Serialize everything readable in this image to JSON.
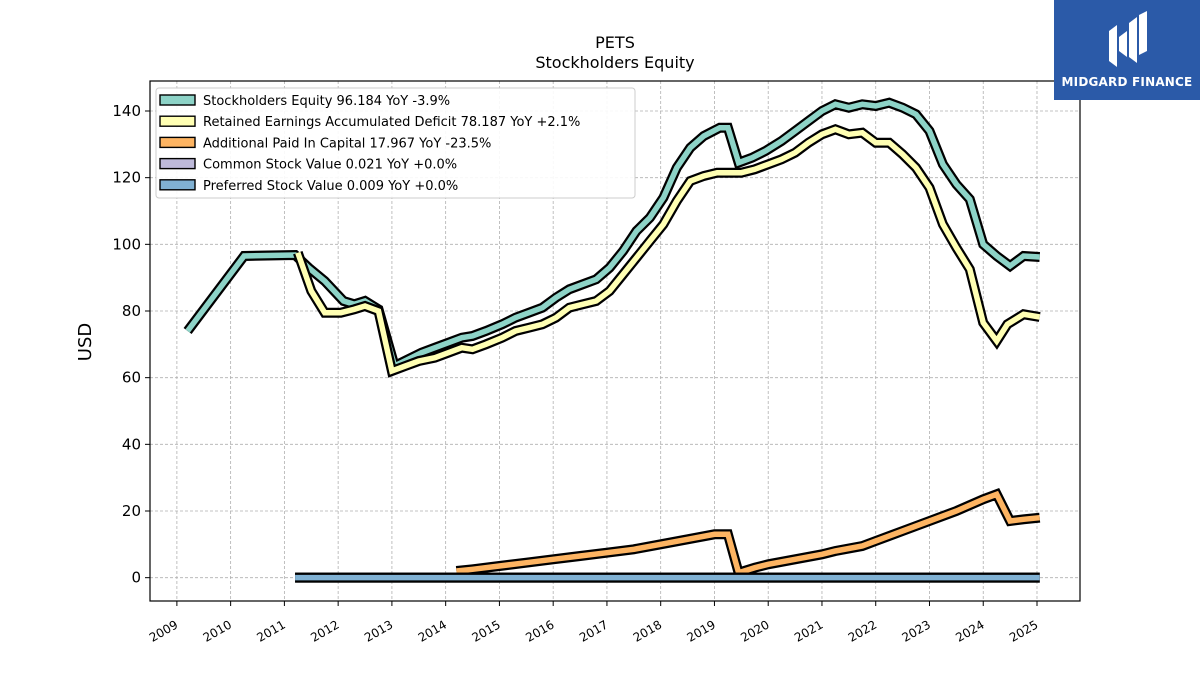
{
  "chart_data": {
    "type": "line",
    "title": "PETS",
    "subtitle": "Stockholders  Equity",
    "xlabel": "",
    "ylabel": "USD",
    "xlim": [
      2008.5,
      2025.8
    ],
    "ylim": [
      -7,
      149
    ],
    "yticks": [
      0,
      20,
      40,
      60,
      80,
      100,
      120,
      140
    ],
    "xticks": [
      "2009",
      "2010",
      "2011",
      "2012",
      "2013",
      "2014",
      "2015",
      "2016",
      "2017",
      "2018",
      "2019",
      "2020",
      "2021",
      "2022",
      "2023",
      "2024",
      "2025"
    ],
    "grid": true,
    "legend_position": "top-left",
    "series": [
      {
        "name": "Stockholders Equity",
        "legend_label": "Stockholders Equity  96.184 YoY -3.9%",
        "color": "#8dd3c7",
        "points": [
          [
            2009.2,
            74
          ],
          [
            2010.25,
            96.5
          ],
          [
            2011.2,
            96.8
          ],
          [
            2011.45,
            93
          ],
          [
            2011.75,
            89
          ],
          [
            2012.1,
            83
          ],
          [
            2012.3,
            82
          ],
          [
            2012.5,
            83
          ],
          [
            2012.75,
            80.5
          ],
          [
            2013.05,
            63.5
          ],
          [
            2013.3,
            65.5
          ],
          [
            2013.55,
            67.5
          ],
          [
            2013.8,
            69
          ],
          [
            2014.05,
            70.5
          ],
          [
            2014.3,
            72
          ],
          [
            2014.5,
            72.5
          ],
          [
            2014.75,
            74
          ],
          [
            2015.05,
            76
          ],
          [
            2015.3,
            78
          ],
          [
            2015.55,
            79.5
          ],
          [
            2015.8,
            81
          ],
          [
            2016.05,
            84
          ],
          [
            2016.3,
            86.5
          ],
          [
            2016.55,
            88
          ],
          [
            2016.8,
            89.5
          ],
          [
            2017.05,
            93
          ],
          [
            2017.3,
            98
          ],
          [
            2017.55,
            104
          ],
          [
            2017.8,
            108
          ],
          [
            2018.05,
            114
          ],
          [
            2018.3,
            123
          ],
          [
            2018.55,
            129
          ],
          [
            2018.8,
            132.5
          ],
          [
            2019.1,
            135
          ],
          [
            2019.25,
            135
          ],
          [
            2019.45,
            124.5
          ],
          [
            2019.7,
            126
          ],
          [
            2019.95,
            128
          ],
          [
            2020.25,
            131
          ],
          [
            2020.5,
            134
          ],
          [
            2020.75,
            137
          ],
          [
            2021.0,
            140
          ],
          [
            2021.25,
            142
          ],
          [
            2021.5,
            141
          ],
          [
            2021.75,
            142
          ],
          [
            2022.0,
            141.5
          ],
          [
            2022.25,
            142.5
          ],
          [
            2022.5,
            141
          ],
          [
            2022.75,
            139
          ],
          [
            2023.0,
            134
          ],
          [
            2023.25,
            124
          ],
          [
            2023.5,
            118
          ],
          [
            2023.75,
            113.5
          ],
          [
            2024.0,
            100
          ],
          [
            2024.25,
            96.5
          ],
          [
            2024.5,
            93.5
          ],
          [
            2024.75,
            96.5
          ],
          [
            2025.05,
            96.2
          ]
        ]
      },
      {
        "name": "Retained Earnings Accumulated Deficit",
        "legend_label": "Retained Earnings Accumulated Deficit  78.187 YoY +2.1%",
        "color": "#ffffb3",
        "points": [
          [
            2011.25,
            97.5
          ],
          [
            2011.5,
            86
          ],
          [
            2011.75,
            79.5
          ],
          [
            2012.05,
            79.5
          ],
          [
            2012.3,
            80.5
          ],
          [
            2012.5,
            81.5
          ],
          [
            2012.75,
            80
          ],
          [
            2013.0,
            62
          ],
          [
            2013.25,
            63.5
          ],
          [
            2013.5,
            65
          ],
          [
            2013.8,
            66
          ],
          [
            2014.05,
            67.5
          ],
          [
            2014.3,
            69
          ],
          [
            2014.5,
            68.5
          ],
          [
            2014.75,
            70
          ],
          [
            2015.05,
            72
          ],
          [
            2015.3,
            74
          ],
          [
            2015.55,
            75
          ],
          [
            2015.8,
            76
          ],
          [
            2016.05,
            78
          ],
          [
            2016.3,
            81
          ],
          [
            2016.55,
            82
          ],
          [
            2016.8,
            83
          ],
          [
            2017.05,
            86
          ],
          [
            2017.3,
            91
          ],
          [
            2017.55,
            96
          ],
          [
            2017.8,
            101
          ],
          [
            2018.05,
            106
          ],
          [
            2018.3,
            113
          ],
          [
            2018.55,
            119
          ],
          [
            2018.8,
            120.5
          ],
          [
            2019.05,
            121.5
          ],
          [
            2019.3,
            121.5
          ],
          [
            2019.5,
            121.5
          ],
          [
            2019.75,
            122.5
          ],
          [
            2020.0,
            124
          ],
          [
            2020.25,
            125.5
          ],
          [
            2020.5,
            127.5
          ],
          [
            2020.75,
            130.5
          ],
          [
            2021.0,
            133
          ],
          [
            2021.25,
            134.5
          ],
          [
            2021.5,
            133
          ],
          [
            2021.75,
            133.5
          ],
          [
            2022.0,
            130.5
          ],
          [
            2022.25,
            130.5
          ],
          [
            2022.5,
            127
          ],
          [
            2022.75,
            123
          ],
          [
            2023.0,
            117
          ],
          [
            2023.25,
            106
          ],
          [
            2023.5,
            99
          ],
          [
            2023.75,
            92.5
          ],
          [
            2024.0,
            76.5
          ],
          [
            2024.25,
            71
          ],
          [
            2024.45,
            76
          ],
          [
            2024.75,
            79
          ],
          [
            2025.05,
            78.2
          ]
        ]
      },
      {
        "name": "Additional Paid In Capital",
        "legend_label": "Additional Paid In Capital  17.967 YoY -23.5%",
        "color": "#fdb462",
        "points": [
          [
            2014.2,
            2
          ],
          [
            2014.5,
            2.5
          ],
          [
            2015.0,
            3.5
          ],
          [
            2015.5,
            4.5
          ],
          [
            2016.0,
            5.5
          ],
          [
            2016.5,
            6.5
          ],
          [
            2017.0,
            7.5
          ],
          [
            2017.5,
            8.5
          ],
          [
            2018.0,
            10
          ],
          [
            2018.5,
            11.5
          ],
          [
            2019.0,
            13
          ],
          [
            2019.25,
            13
          ],
          [
            2019.45,
            1.5
          ],
          [
            2019.75,
            3
          ],
          [
            2020.0,
            4
          ],
          [
            2020.5,
            5.5
          ],
          [
            2021.0,
            7
          ],
          [
            2021.25,
            8
          ],
          [
            2021.75,
            9.5
          ],
          [
            2022.0,
            11
          ],
          [
            2022.5,
            14
          ],
          [
            2023.0,
            17
          ],
          [
            2023.5,
            20
          ],
          [
            2024.0,
            23.5
          ],
          [
            2024.25,
            25
          ],
          [
            2024.5,
            17
          ],
          [
            2024.75,
            17.5
          ],
          [
            2025.05,
            18
          ]
        ]
      },
      {
        "name": "Common Stock Value",
        "legend_label": "Common Stock Value  0.021 YoY +0.0%",
        "color": "#bebada",
        "points": [
          [
            2011.2,
            0.02
          ],
          [
            2025.05,
            0.021
          ]
        ]
      },
      {
        "name": "Preferred Stock Value",
        "legend_label": "Preferred Stock Value  0.009 YoY +0.0%",
        "color": "#80b1d3",
        "points": [
          [
            2011.2,
            0.009
          ],
          [
            2025.05,
            0.009
          ]
        ]
      }
    ]
  },
  "logo": {
    "text": "MIDGARD FINANCE",
    "color": "#2b5aa8"
  }
}
